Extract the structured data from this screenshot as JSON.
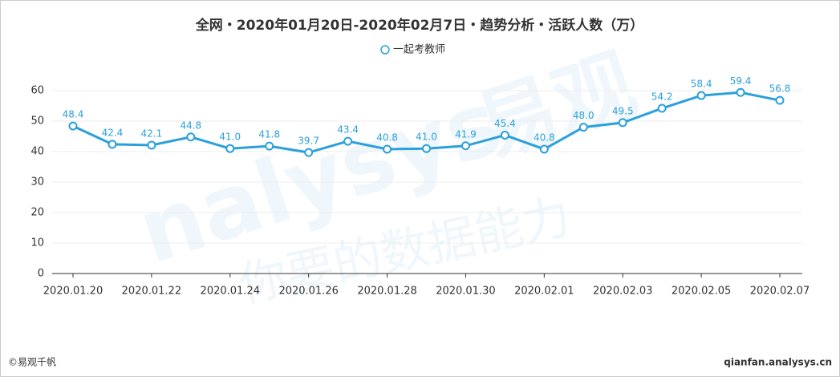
{
  "chart_data": {
    "type": "line",
    "title": "全网・2020年01月20日-2020年02月7日・趋势分析・活跃人数（万）",
    "categories": [
      "2020.01.20",
      null,
      "2020.01.22",
      null,
      "2020.01.24",
      null,
      "2020.01.26",
      null,
      "2020.01.28",
      null,
      "2020.01.30",
      null,
      "2020.02.01",
      null,
      "2020.02.03",
      null,
      "2020.02.05",
      null,
      "2020.02.07"
    ],
    "series": [
      {
        "name": "一起考教师",
        "color": "#2aa0dc",
        "values": [
          48.4,
          42.4,
          42.1,
          44.8,
          41.0,
          41.8,
          39.7,
          43.4,
          40.8,
          41.0,
          41.9,
          45.4,
          40.8,
          48.0,
          49.5,
          54.2,
          58.4,
          59.4,
          56.8
        ],
        "value_labels": [
          "48.4",
          "42.4",
          "42.1",
          "44.8",
          "41.0",
          "41.8",
          "39.7",
          "43.4",
          "40.8",
          "41.0",
          "41.9",
          "45.4",
          "40.8",
          "48.0",
          "49.5",
          "54.2",
          "58.4",
          "59.4",
          "56.8"
        ]
      }
    ],
    "ylim": [
      0,
      60
    ],
    "yticks": [
      0,
      10,
      20,
      30,
      40,
      50,
      60
    ],
    "grid": true
  },
  "watermark": [
    "nalysys",
    "易观",
    "你要的数据能力"
  ],
  "footer": {
    "left": "©易观千帆",
    "right": "qianfan.analysys.cn"
  }
}
